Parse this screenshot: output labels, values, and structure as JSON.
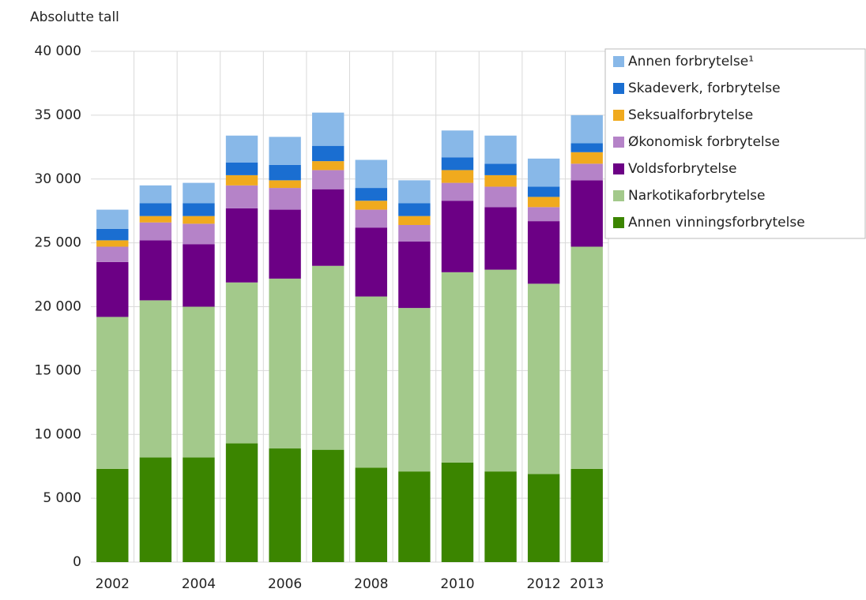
{
  "chart_data": {
    "type": "stacked_bar",
    "y_label": "Absolutte tall",
    "categories": [
      "2002",
      null,
      "2004",
      null,
      "2006",
      null,
      "2008",
      null,
      "2010",
      null,
      "2012",
      "2013"
    ],
    "series": [
      {
        "name": "Annen vinningsforbrytelse",
        "color": "#3b8500",
        "values": [
          7300,
          8200,
          8200,
          9300,
          8900,
          8800,
          7400,
          7100,
          7800,
          7100,
          6900,
          7300
        ]
      },
      {
        "name": "Narkotikaforbrytelse",
        "color": "#a3c98b",
        "values": [
          11900,
          12300,
          11800,
          12600,
          13300,
          14400,
          13400,
          12800,
          14900,
          15800,
          14900,
          17400
        ]
      },
      {
        "name": "Voldsforbrytelse",
        "color": "#6c0085",
        "values": [
          4300,
          4700,
          4900,
          5800,
          5400,
          6000,
          5400,
          5200,
          5600,
          4900,
          4900,
          5200
        ]
      },
      {
        "name": "Økonomisk forbrytelse",
        "color": "#b583c8",
        "values": [
          1200,
          1400,
          1600,
          1800,
          1700,
          1500,
          1400,
          1300,
          1400,
          1600,
          1100,
          1300
        ]
      },
      {
        "name": "Seksualforbrytelse",
        "color": "#f0aa1e",
        "values": [
          500,
          500,
          600,
          800,
          600,
          700,
          700,
          700,
          1000,
          900,
          800,
          900
        ]
      },
      {
        "name": "Skadeverk, forbrytelse",
        "color": "#1a6ed1",
        "values": [
          900,
          1000,
          1000,
          1000,
          1200,
          1200,
          1000,
          1000,
          1000,
          900,
          800,
          700
        ]
      },
      {
        "name": "Annen forbrytelse¹",
        "color": "#88b8e8",
        "values": [
          1500,
          1400,
          1600,
          2100,
          2200,
          2600,
          2200,
          1800,
          2100,
          2200,
          2200,
          2200
        ]
      }
    ],
    "ylim": [
      0,
      40000
    ],
    "yticks": [
      0,
      {
        "value": 5000,
        "label": "5 000"
      },
      {
        "value": 10000,
        "label": "10 000"
      },
      {
        "value": 15000,
        "label": "15 000"
      },
      {
        "value": 20000,
        "label": "20 000"
      },
      {
        "value": 25000,
        "label": "25 000"
      },
      {
        "value": 30000,
        "label": "30 000"
      },
      {
        "value": 35000,
        "label": "35 000"
      },
      {
        "value": 40000,
        "label": "40 000"
      }
    ],
    "grid": true,
    "legend": "upper right"
  }
}
